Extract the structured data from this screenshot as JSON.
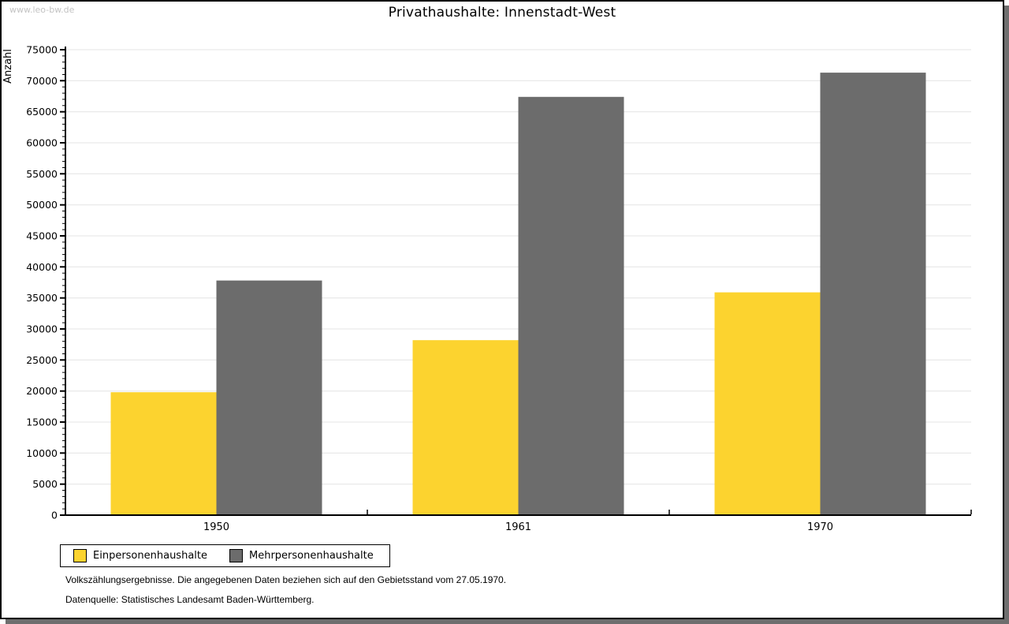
{
  "watermark": "www.leo-bw.de",
  "title": "Privathaushalte: Innenstadt-West",
  "legend": {
    "items": [
      {
        "label": "Einpersonenhaushalte",
        "color": "#fcd32f"
      },
      {
        "label": "Mehrpersonenhaushalte",
        "color": "#6c6c6c"
      }
    ]
  },
  "footnotes": [
    "Volkszählungsergebnisse. Die angegebenen Daten beziehen sich auf den Gebietsstand vom 27.05.1970.",
    "Datenquelle: Statistisches Landesamt Baden-Württemberg."
  ],
  "colors": {
    "grid": "#e4e4e4",
    "axis": "#000000",
    "shadow": "#6e6e6e",
    "watermark": "#c3c3c3"
  },
  "chart_data": {
    "type": "bar",
    "title": "Privathaushalte: Innenstadt-West",
    "categories": [
      "1950",
      "1961",
      "1970"
    ],
    "series": [
      {
        "name": "Einpersonenhaushalte",
        "color": "#fcd32f",
        "values": [
          19800,
          28200,
          35900
        ]
      },
      {
        "name": "Mehrpersonenhaushalte",
        "color": "#6c6c6c",
        "values": [
          37800,
          67400,
          71300
        ]
      }
    ],
    "xlabel": "",
    "ylabel": "Anzahl",
    "ylim": [
      0,
      75000
    ],
    "ytick_step": 5000,
    "minor_tick_step": 1000,
    "grid": true,
    "legend_position": "bottom-left"
  }
}
